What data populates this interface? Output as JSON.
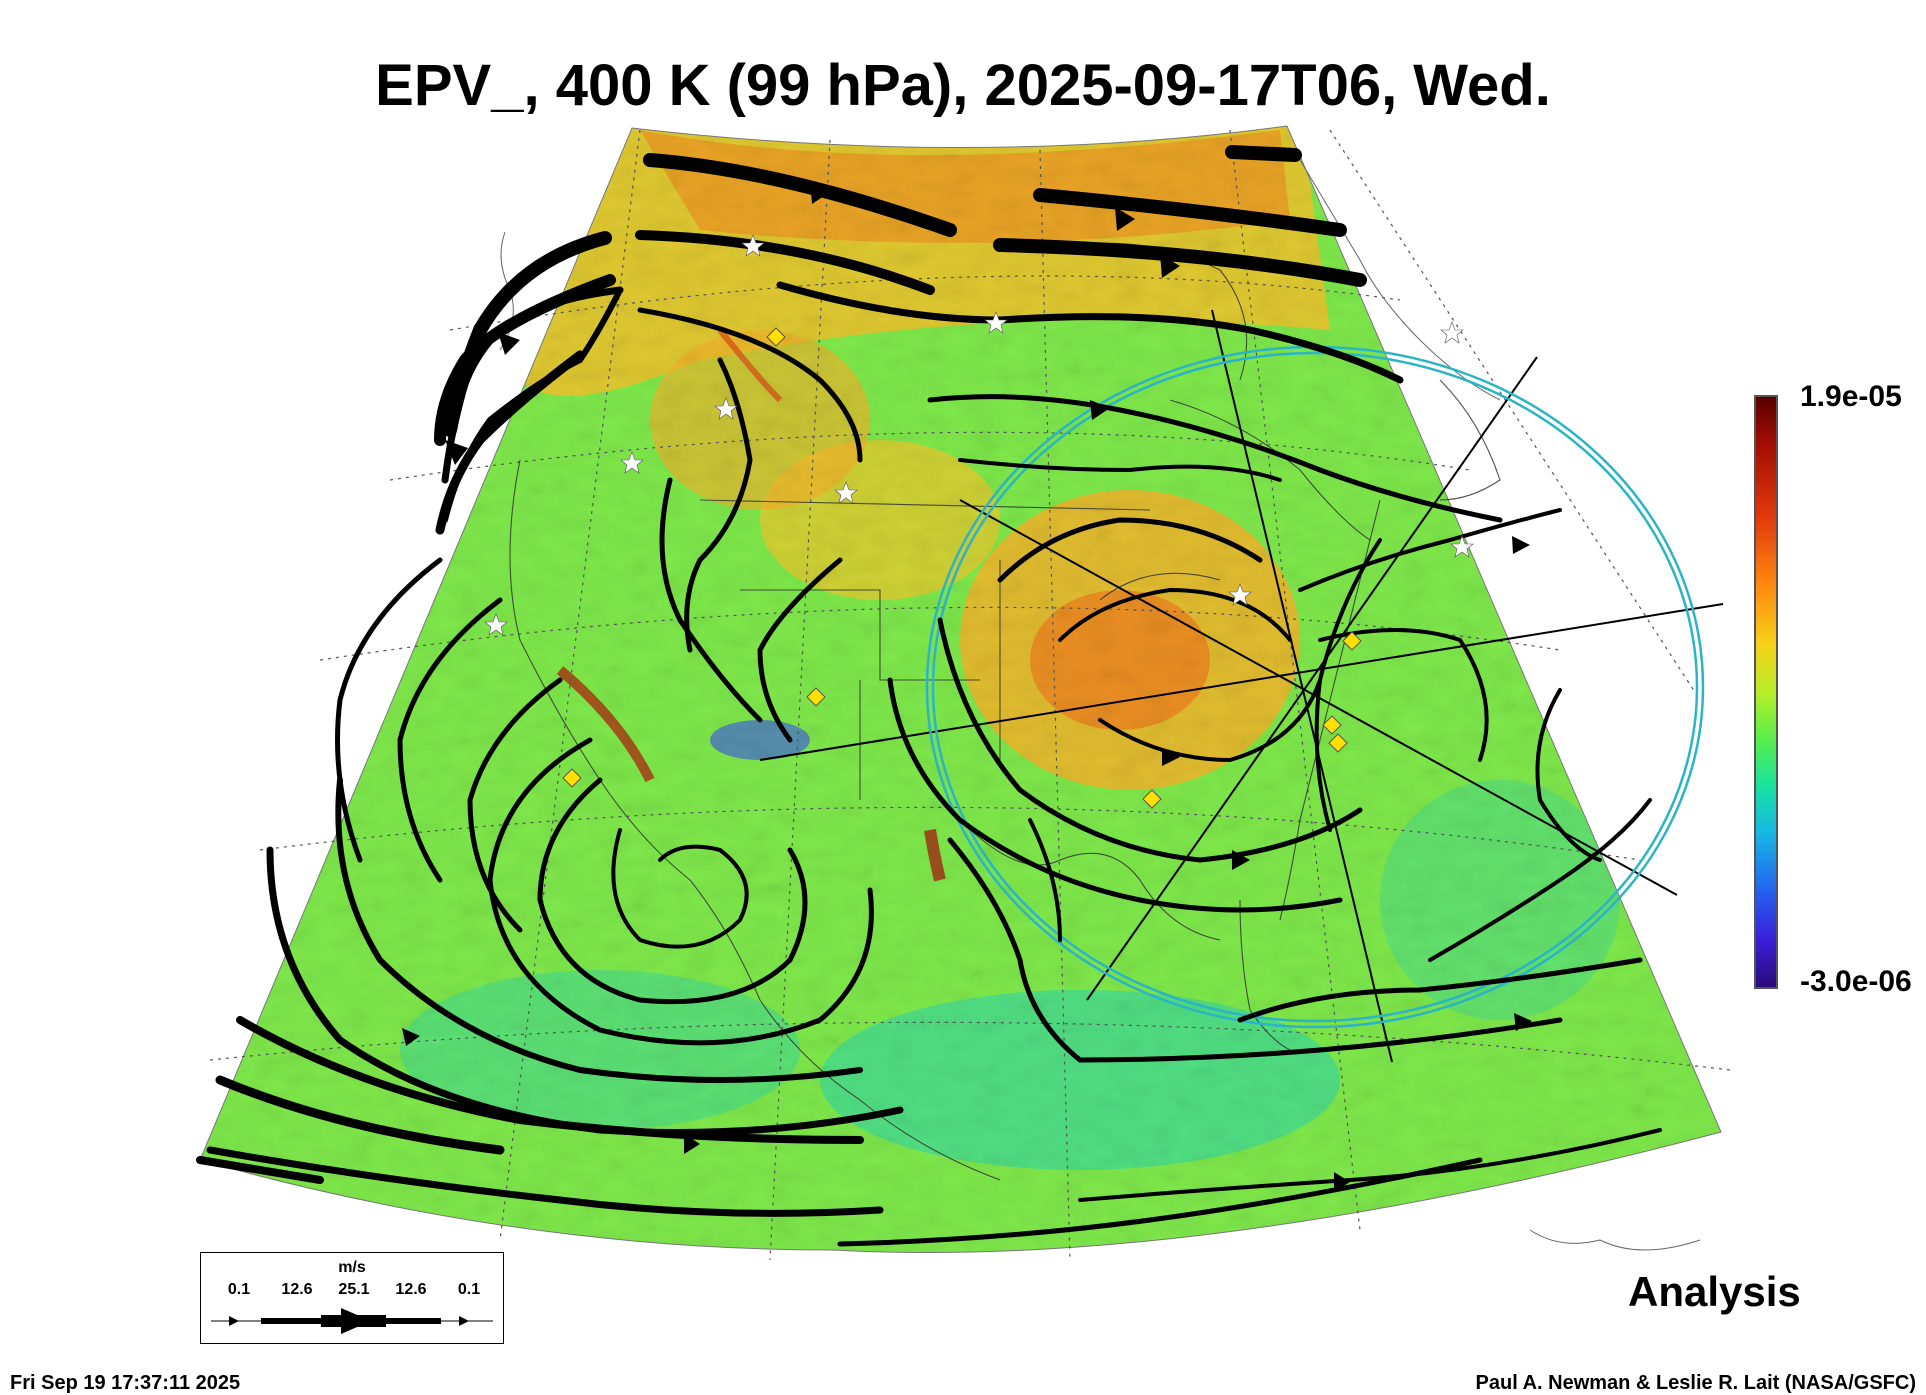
{
  "title": "EPV_, 400 K (99 hPa), 2025-09-17T06, Wed.",
  "colorbar": {
    "max_label": "1.9e-05",
    "min_label": "-3.0e-06"
  },
  "legend": {
    "unit": "m/s",
    "ticks": [
      "0.1",
      "12.6",
      "25.1",
      "12.6",
      "0.1"
    ]
  },
  "analysis_label": "Analysis",
  "timestamp": "Fri Sep 19 17:37:11 2025",
  "credit": "Paul A. Newman & Leslie R. Lait (NASA/GSFC)",
  "colors": {
    "field_base": "#7ee84a",
    "field_warm": "#f2c02a",
    "field_hot": "#e8501a",
    "field_cool": "#22d2b0",
    "circle": "#2bb4c8",
    "streamline": "#000000",
    "marker_star": "#ffffff",
    "marker_diamond": "#ffe000"
  },
  "markers": {
    "stars": 9,
    "diamonds": 7
  }
}
